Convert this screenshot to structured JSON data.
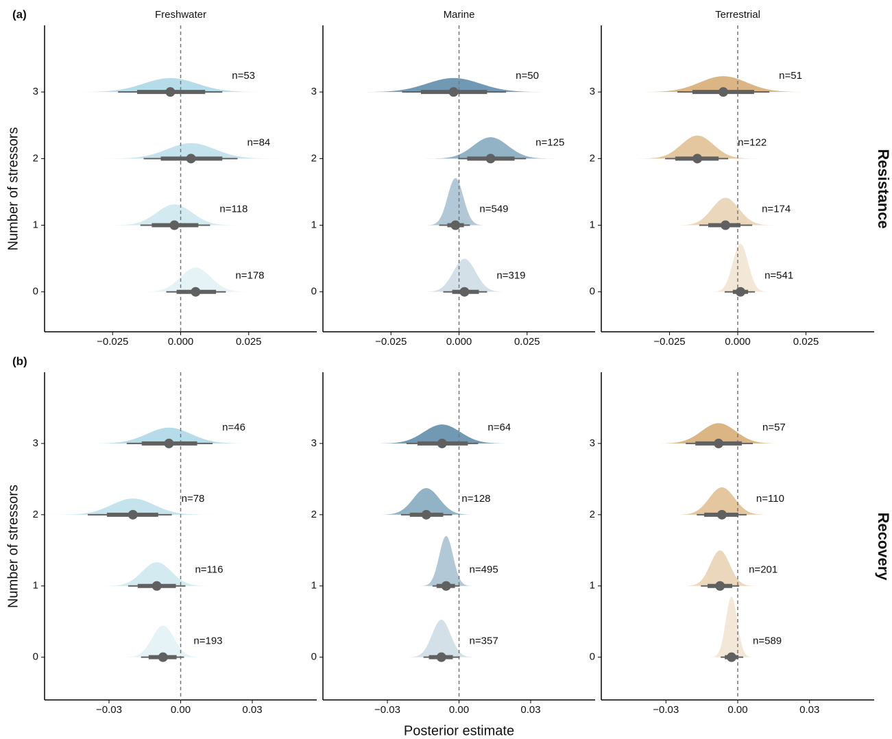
{
  "chart_data": [
    {
      "type": "halfeye",
      "tag": "(a)",
      "title": "Freshwater",
      "ylabel": "Number of stressors",
      "stressors": [
        0,
        1,
        2,
        3
      ],
      "yticks": [
        0,
        1,
        2,
        3
      ],
      "ylim": [
        -0.6,
        4
      ],
      "xlim": [
        -0.05,
        0.05
      ],
      "xticks": [
        {
          "value": -0.025,
          "label": "−0.025"
        },
        {
          "value": 0,
          "label": "0.000"
        },
        {
          "value": 0.025,
          "label": "0.025"
        }
      ],
      "refline": 0,
      "colors": [
        "#e6f3f6",
        "#d4eaf1",
        "#c4e3ed",
        "#b5dce8"
      ],
      "median": [
        0.0055,
        -0.0023,
        0.0038,
        -0.0038
      ],
      "inner": [
        [
          -0.0015,
          0.013
        ],
        [
          -0.0106,
          0.0065
        ],
        [
          -0.0073,
          0.0153
        ],
        [
          -0.016,
          0.009
        ]
      ],
      "outer": [
        [
          -0.0053,
          0.0166
        ],
        [
          -0.0148,
          0.0108
        ],
        [
          -0.0136,
          0.0209
        ],
        [
          -0.023,
          0.0153
        ]
      ],
      "n_labels": [
        "n=178",
        "n=118",
        "n=84",
        "n=53"
      ]
    },
    {
      "type": "halfeye",
      "title": "Marine",
      "stressors": [
        0,
        1,
        2,
        3
      ],
      "yticks": [
        0,
        1,
        2,
        3
      ],
      "ylim": [
        -0.6,
        4
      ],
      "xlim": [
        -0.05,
        0.05
      ],
      "xticks": [
        {
          "value": -0.025,
          "label": "−0.025"
        },
        {
          "value": 0,
          "label": "0.000"
        },
        {
          "value": 0.025,
          "label": "0.025"
        }
      ],
      "refline": 0,
      "colors": [
        "#d3e0e8",
        "#b2c8d6",
        "#92b2c6",
        "#7199b3"
      ],
      "median": [
        0.002,
        -0.0013,
        0.0116,
        -0.002
      ],
      "inner": [
        [
          -0.0025,
          0.0073
        ],
        [
          -0.0043,
          0.0018
        ],
        [
          0.003,
          0.0204
        ],
        [
          -0.014,
          0.0103
        ]
      ],
      "outer": [
        [
          -0.0058,
          0.0103
        ],
        [
          -0.0073,
          0.004
        ],
        [
          -0.0003,
          0.0246
        ],
        [
          -0.0209,
          0.0173
        ]
      ],
      "n_labels": [
        "n=319",
        "n=549",
        "n=125",
        "n=50"
      ]
    },
    {
      "type": "halfeye",
      "title": "Terrestrial",
      "strip": "Resistance",
      "stressors": [
        0,
        1,
        2,
        3
      ],
      "yticks": [
        0,
        1,
        2,
        3
      ],
      "ylim": [
        -0.6,
        4
      ],
      "xlim": [
        -0.05,
        0.05
      ],
      "xticks": [
        {
          "value": -0.025,
          "label": "−0.025"
        },
        {
          "value": 0,
          "label": "0.000"
        },
        {
          "value": 0.025,
          "label": "0.025"
        }
      ],
      "refline": 0,
      "colors": [
        "#f3e8d8",
        "#ebd7bc",
        "#e4c69f",
        "#dbb584"
      ],
      "median": [
        0.001,
        -0.0045,
        -0.0148,
        -0.0053
      ],
      "inner": [
        [
          -0.0018,
          0.0038
        ],
        [
          -0.0108,
          0.001
        ],
        [
          -0.0229,
          -0.007
        ],
        [
          -0.0166,
          0.006
        ]
      ],
      "outer": [
        [
          -0.0048,
          0.0063
        ],
        [
          -0.0141,
          0.0053
        ],
        [
          -0.0266,
          -0.0035
        ],
        [
          -0.0221,
          0.0116
        ]
      ],
      "n_labels": [
        "n=541",
        "n=174",
        "n=122",
        "n=51"
      ]
    },
    {
      "type": "halfeye",
      "tag": "(b)",
      "ylabel": "Number of stressors",
      "stressors": [
        0,
        1,
        2,
        3
      ],
      "yticks": [
        0,
        1,
        2,
        3
      ],
      "ylim": [
        -0.6,
        4
      ],
      "xlim": [
        -0.057,
        0.057
      ],
      "xticks": [
        {
          "value": -0.03,
          "label": "−0.03"
        },
        {
          "value": 0,
          "label": "0.00"
        },
        {
          "value": 0.03,
          "label": "0.03"
        }
      ],
      "refline": 0,
      "colors": [
        "#e6f3f6",
        "#d4eaf1",
        "#c4e3ed",
        "#b5dce8"
      ],
      "median": [
        -0.0074,
        -0.01,
        -0.02,
        -0.0049
      ],
      "inner": [
        [
          -0.0134,
          -0.0017
        ],
        [
          -0.018,
          -0.002
        ],
        [
          -0.0309,
          -0.0094
        ],
        [
          -0.0163,
          0.0069
        ]
      ],
      "outer": [
        [
          -0.0166,
          0.0014
        ],
        [
          -0.022,
          0.002
        ],
        [
          -0.0389,
          -0.0037
        ],
        [
          -0.0226,
          0.0134
        ]
      ],
      "n_labels": [
        "n=193",
        "n=116",
        "n=78",
        "n=46"
      ]
    },
    {
      "type": "halfeye",
      "xlabel": "Posterior estimate",
      "stressors": [
        0,
        1,
        2,
        3
      ],
      "yticks": [
        0,
        1,
        2,
        3
      ],
      "ylim": [
        -0.6,
        4
      ],
      "xlim": [
        -0.057,
        0.057
      ],
      "xticks": [
        {
          "value": -0.03,
          "label": "−0.03"
        },
        {
          "value": 0,
          "label": "0.00"
        },
        {
          "value": 0.03,
          "label": "0.03"
        }
      ],
      "refline": 0,
      "colors": [
        "#d3e0e8",
        "#b2c8d6",
        "#92b2c6",
        "#7199b3"
      ],
      "median": [
        -0.0074,
        -0.0054,
        -0.0137,
        -0.0071
      ],
      "inner": [
        [
          -0.0126,
          -0.0026
        ],
        [
          -0.0094,
          -0.0017
        ],
        [
          -0.0206,
          -0.0066
        ],
        [
          -0.0174,
          0.0037
        ]
      ],
      "outer": [
        [
          -0.0149,
          0.0003
        ],
        [
          -0.0111,
          0.0003
        ],
        [
          -0.0243,
          -0.0029
        ],
        [
          -0.022,
          0.008
        ]
      ],
      "n_labels": [
        "n=357",
        "n=495",
        "n=128",
        "n=64"
      ]
    },
    {
      "type": "halfeye",
      "strip": "Recovery",
      "stressors": [
        0,
        1,
        2,
        3
      ],
      "yticks": [
        0,
        1,
        2,
        3
      ],
      "ylim": [
        -0.6,
        4
      ],
      "xlim": [
        -0.057,
        0.057
      ],
      "xticks": [
        {
          "value": -0.03,
          "label": "−0.03"
        },
        {
          "value": 0,
          "label": "0.00"
        },
        {
          "value": 0.03,
          "label": "0.03"
        }
      ],
      "refline": 0,
      "colors": [
        "#f3e8d8",
        "#ebd7bc",
        "#e4c69f",
        "#dbb584"
      ],
      "median": [
        -0.0026,
        -0.0074,
        -0.0066,
        -0.008
      ],
      "inner": [
        [
          -0.0054,
          0.0003
        ],
        [
          -0.0126,
          -0.0023
        ],
        [
          -0.014,
          0.0003
        ],
        [
          -0.0177,
          0.0017
        ]
      ],
      "outer": [
        [
          -0.0071,
          0.0023
        ],
        [
          -0.0154,
          0.0006
        ],
        [
          -0.0171,
          0.0037
        ],
        [
          -0.0217,
          0.0063
        ]
      ],
      "n_labels": [
        "n=589",
        "n=201",
        "n=110",
        "n=57"
      ]
    }
  ]
}
